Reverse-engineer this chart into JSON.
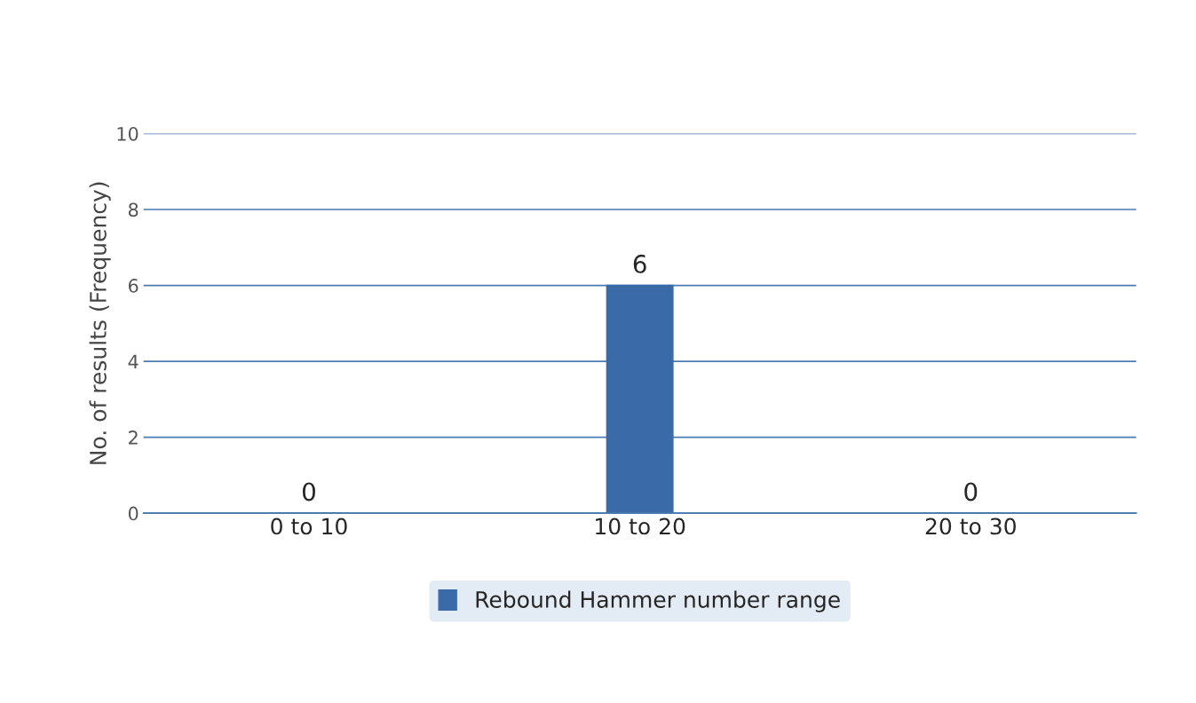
{
  "chart_data": {
    "type": "bar",
    "ylabel": "No. of results (Frequency)",
    "categories": [
      "0 to 10",
      "10 to 20",
      "20 to 30"
    ],
    "series": [
      {
        "name": "Rebound Hammer number range",
        "color": "#3a6aa8",
        "values": [
          0,
          6,
          0
        ]
      }
    ],
    "ylim": [
      0,
      10
    ],
    "yticks": [
      0,
      2,
      4,
      6,
      8,
      10
    ],
    "grid": "y",
    "legend": "bottom",
    "data_labels": true
  }
}
